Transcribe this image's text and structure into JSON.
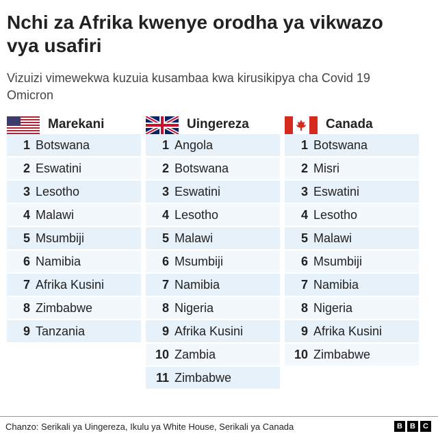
{
  "header": {
    "title": "Nchi za Afrika kwenye orodha ya vikwazo vya usafiri",
    "subtitle": "Vizuizi vimewekwa kuzuia kusambaa kwa kirusikipya cha Covid 19  Omicron"
  },
  "columns": [
    {
      "country": "Marekani",
      "items": [
        {
          "rank": 1,
          "name": "Botswana"
        },
        {
          "rank": 2,
          "name": "Eswatini"
        },
        {
          "rank": 3,
          "name": "Lesotho"
        },
        {
          "rank": 4,
          "name": "Malawi"
        },
        {
          "rank": 5,
          "name": "Msumbiji"
        },
        {
          "rank": 6,
          "name": "Namibia"
        },
        {
          "rank": 7,
          "name": "Afrika Kusini"
        },
        {
          "rank": 8,
          "name": "Zimbabwe"
        },
        {
          "rank": 9,
          "name": "Tanzania"
        }
      ]
    },
    {
      "country": "Uingereza",
      "items": [
        {
          "rank": 1,
          "name": "Angola"
        },
        {
          "rank": 2,
          "name": "Botswana"
        },
        {
          "rank": 3,
          "name": "Eswatini"
        },
        {
          "rank": 4,
          "name": "Lesotho"
        },
        {
          "rank": 5,
          "name": "Malawi"
        },
        {
          "rank": 6,
          "name": "Msumbiji"
        },
        {
          "rank": 7,
          "name": "Namibia"
        },
        {
          "rank": 8,
          "name": "Nigeria"
        },
        {
          "rank": 9,
          "name": "Afrika Kusini"
        },
        {
          "rank": 10,
          "name": "Zambia"
        },
        {
          "rank": 11,
          "name": "Zimbabwe"
        }
      ]
    },
    {
      "country": "Canada",
      "items": [
        {
          "rank": 1,
          "name": "Botswana"
        },
        {
          "rank": 2,
          "name": "Misri"
        },
        {
          "rank": 3,
          "name": "Eswatini"
        },
        {
          "rank": 4,
          "name": "Lesotho"
        },
        {
          "rank": 5,
          "name": "Malawi"
        },
        {
          "rank": 6,
          "name": "Msumbiji"
        },
        {
          "rank": 7,
          "name": "Namibia"
        },
        {
          "rank": 8,
          "name": "Nigeria"
        },
        {
          "rank": 9,
          "name": "Afrika Kusini"
        },
        {
          "rank": 10,
          "name": "Zimbabwe"
        }
      ]
    }
  ],
  "footer": {
    "source": "Chanzo: Serikali ya Uingereza, Ikulu ya White House, Serikali ya  Canada",
    "logo": [
      "B",
      "B",
      "C"
    ]
  }
}
